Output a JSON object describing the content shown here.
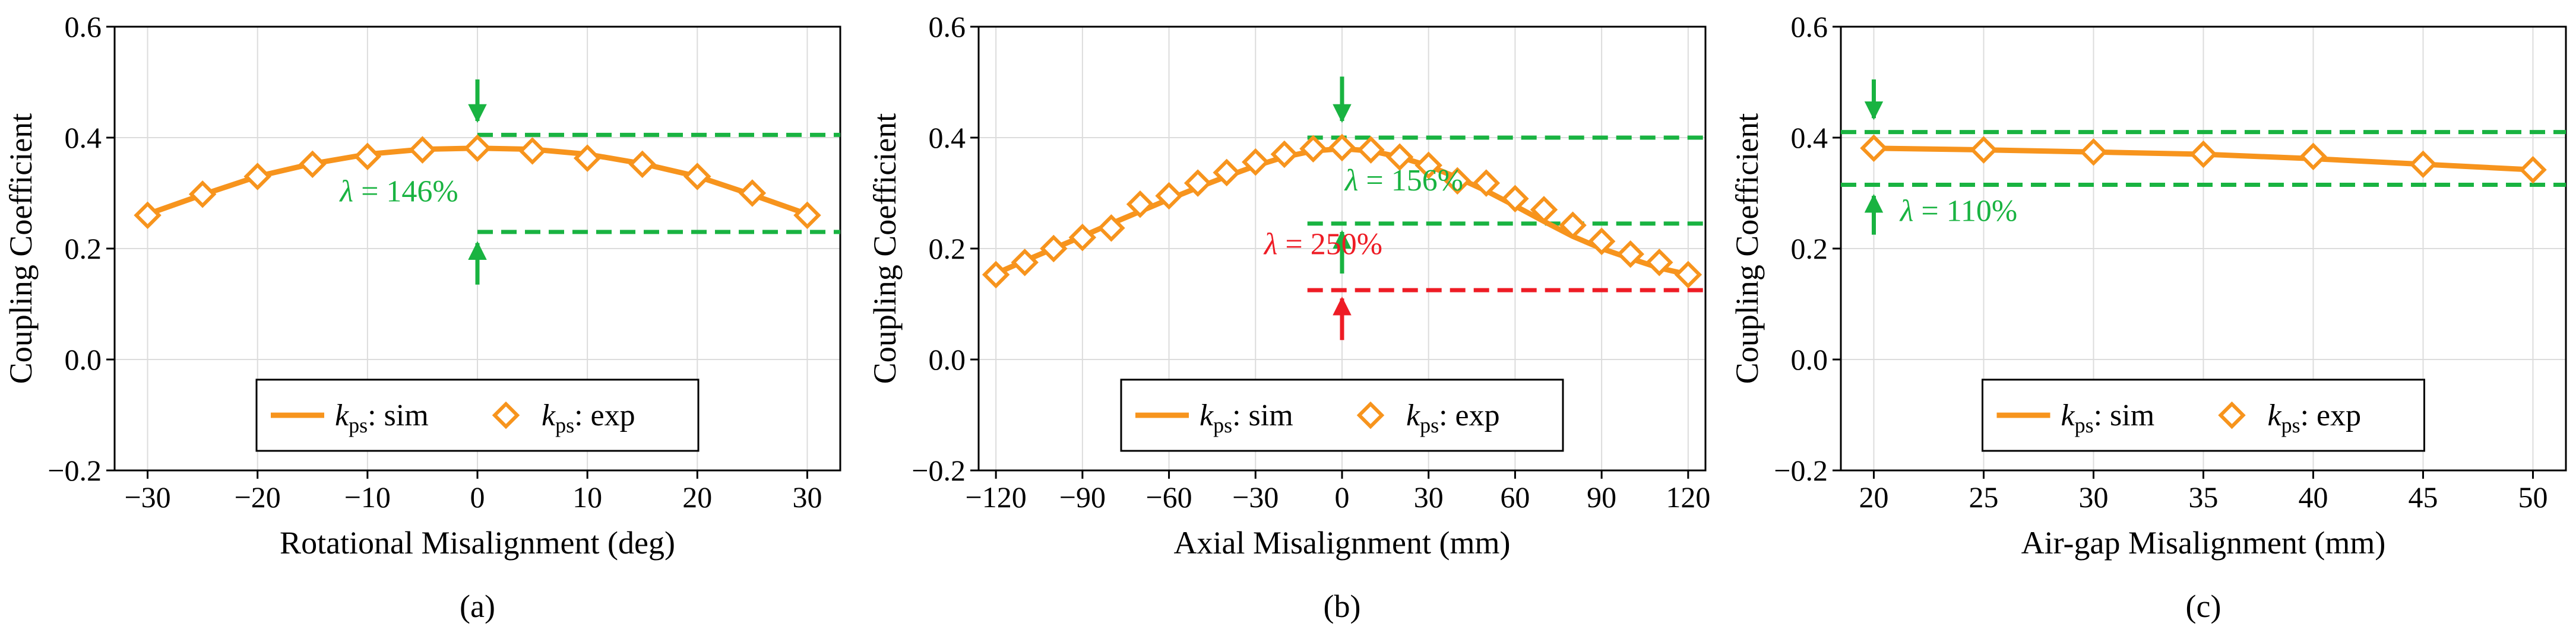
{
  "colors": {
    "series": "#f7941d",
    "guide_green": "#19b341",
    "guide_red": "#ee1c25",
    "grid": "#dcdcdc",
    "axis": "#000000"
  },
  "chart_data": [
    {
      "type": "line",
      "panel": "(a)",
      "xlabel": "Rotational Misalignment (deg)",
      "ylabel": "Coupling Coefficient",
      "xlim": [
        -33,
        33
      ],
      "ylim": [
        -0.2,
        0.6
      ],
      "xticks": [
        -30,
        -20,
        -10,
        0,
        10,
        20,
        30
      ],
      "xtick_labels": [
        "−30",
        "−20",
        "−10",
        "0",
        "10",
        "20",
        "30"
      ],
      "yticks": [
        -0.2,
        0.0,
        0.2,
        0.4,
        0.6
      ],
      "ytick_labels": [
        "−0.2",
        "0.0",
        "0.2",
        "0.4",
        "0.6"
      ],
      "grid": true,
      "legend_placement": "bottom-center",
      "series": [
        {
          "name": "k_ps: sim",
          "style": "line",
          "x": [
            -30,
            -25,
            -20,
            -15,
            -10,
            -5,
            0,
            5,
            10,
            15,
            20,
            25,
            30
          ],
          "values": [
            0.262,
            0.297,
            0.33,
            0.353,
            0.37,
            0.379,
            0.381,
            0.379,
            0.37,
            0.353,
            0.33,
            0.297,
            0.262
          ]
        },
        {
          "name": "k_ps: exp",
          "style": "diamond-markers",
          "x": [
            -30,
            -25,
            -20,
            -15,
            -10,
            -5,
            0,
            5,
            10,
            15,
            20,
            25,
            30
          ],
          "values": [
            0.26,
            0.298,
            0.33,
            0.352,
            0.366,
            0.378,
            0.381,
            0.376,
            0.363,
            0.352,
            0.33,
            0.3,
            0.26
          ]
        }
      ],
      "legend": [
        {
          "sym": "k",
          "sub": "ps",
          "text": ": sim"
        },
        {
          "sym": "k",
          "sub": "ps",
          "text": ": exp"
        }
      ],
      "guides": [
        {
          "y": 0.405,
          "x_from": 0,
          "x_to": 33,
          "color": "green"
        },
        {
          "y": 0.23,
          "x_from": 0,
          "x_to": 33,
          "color": "green"
        }
      ],
      "arrows": [
        {
          "x": 0,
          "y_tail": 0.505,
          "y_head": 0.43,
          "color": "green"
        },
        {
          "x": 0,
          "y_tail": 0.135,
          "y_head": 0.21,
          "color": "green"
        }
      ],
      "annotations": [
        {
          "sym": "λ",
          "text": " = 146%",
          "x": -12.5,
          "y": 0.285,
          "color": "green"
        }
      ]
    },
    {
      "type": "line",
      "panel": "(b)",
      "xlabel": "Axial Misalignment (mm)",
      "ylabel": "Coupling Coefficient",
      "xlim": [
        -126,
        126
      ],
      "ylim": [
        -0.2,
        0.6
      ],
      "xticks": [
        -120,
        -90,
        -60,
        -30,
        0,
        30,
        60,
        90,
        120
      ],
      "xtick_labels": [
        "−120",
        "−90",
        "−60",
        "−30",
        "0",
        "30",
        "60",
        "90",
        "120"
      ],
      "yticks": [
        -0.2,
        0.0,
        0.2,
        0.4,
        0.6
      ],
      "ytick_labels": [
        "−0.2",
        "0.0",
        "0.2",
        "0.4",
        "0.6"
      ],
      "grid": true,
      "legend_placement": "bottom-center",
      "series": [
        {
          "name": "k_ps: sim",
          "style": "line",
          "x": [
            -120,
            -110,
            -100,
            -90,
            -80,
            -70,
            -60,
            -50,
            -40,
            -30,
            -20,
            -10,
            0,
            10,
            20,
            30,
            40,
            50,
            60,
            70,
            80,
            90,
            100,
            110,
            120
          ],
          "values": [
            0.155,
            0.178,
            0.2,
            0.222,
            0.245,
            0.267,
            0.289,
            0.31,
            0.33,
            0.349,
            0.365,
            0.376,
            0.38,
            0.376,
            0.365,
            0.349,
            0.328,
            0.304,
            0.277,
            0.249,
            0.222,
            0.2,
            0.182,
            0.165,
            0.153
          ]
        },
        {
          "name": "k_ps: exp",
          "style": "diamond-markers",
          "x": [
            -120,
            -110,
            -100,
            -90,
            -80,
            -70,
            -60,
            -50,
            -40,
            -30,
            -20,
            -10,
            0,
            10,
            20,
            30,
            40,
            50,
            60,
            70,
            80,
            90,
            100,
            110,
            120
          ],
          "values": [
            0.153,
            0.175,
            0.2,
            0.22,
            0.237,
            0.28,
            0.295,
            0.318,
            0.337,
            0.356,
            0.37,
            0.38,
            0.382,
            0.378,
            0.365,
            0.35,
            0.322,
            0.318,
            0.29,
            0.27,
            0.242,
            0.213,
            0.19,
            0.175,
            0.153
          ]
        }
      ],
      "legend": [
        {
          "sym": "k",
          "sub": "ps",
          "text": ": sim"
        },
        {
          "sym": "k",
          "sub": "ps",
          "text": ": exp"
        }
      ],
      "guides": [
        {
          "y": 0.4,
          "x_from": -12,
          "x_to": 126,
          "color": "green"
        },
        {
          "y": 0.245,
          "x_from": -12,
          "x_to": 126,
          "color": "green"
        },
        {
          "y": 0.125,
          "x_from": -12,
          "x_to": 126,
          "color": "red"
        }
      ],
      "arrows": [
        {
          "x": 0,
          "y_tail": 0.51,
          "y_head": 0.43,
          "color": "green"
        },
        {
          "x": 0,
          "y_tail": 0.155,
          "y_head": 0.23,
          "color": "green"
        },
        {
          "x": 0,
          "y_tail": 0.035,
          "y_head": 0.11,
          "color": "red"
        }
      ],
      "annotations": [
        {
          "sym": "λ",
          "text": " = 156%",
          "x": 1,
          "y": 0.305,
          "color": "green"
        },
        {
          "sym": "λ",
          "text": " = 250%",
          "x": -27,
          "y": 0.19,
          "color": "red"
        }
      ]
    },
    {
      "type": "line",
      "panel": "(c)",
      "xlabel": "Air-gap Misalignment (mm)",
      "ylabel": "Coupling Coefficient",
      "xlim": [
        18.5,
        51.5
      ],
      "ylim": [
        -0.2,
        0.6
      ],
      "xticks": [
        20,
        25,
        30,
        35,
        40,
        45,
        50
      ],
      "xtick_labels": [
        "20",
        "25",
        "30",
        "35",
        "40",
        "45",
        "50"
      ],
      "yticks": [
        -0.2,
        0.0,
        0.2,
        0.4,
        0.6
      ],
      "ytick_labels": [
        "−0.2",
        "0.0",
        "0.2",
        "0.4",
        "0.6"
      ],
      "grid": true,
      "legend_placement": "bottom-center",
      "series": [
        {
          "name": "k_ps: sim",
          "style": "line",
          "x": [
            20,
            25,
            30,
            35,
            40,
            45,
            50
          ],
          "values": [
            0.381,
            0.378,
            0.374,
            0.37,
            0.362,
            0.352,
            0.342
          ]
        },
        {
          "name": "k_ps: exp",
          "style": "diamond-markers",
          "x": [
            20,
            25,
            30,
            35,
            40,
            45,
            50
          ],
          "values": [
            0.381,
            0.378,
            0.374,
            0.37,
            0.366,
            0.352,
            0.342
          ]
        }
      ],
      "legend": [
        {
          "sym": "k",
          "sub": "ps",
          "text": ": sim"
        },
        {
          "sym": "k",
          "sub": "ps",
          "text": ": exp"
        }
      ],
      "guides": [
        {
          "y": 0.41,
          "x_from": 18.5,
          "x_to": 51.5,
          "color": "green"
        },
        {
          "y": 0.315,
          "x_from": 18.5,
          "x_to": 51.5,
          "color": "green"
        }
      ],
      "arrows": [
        {
          "x": 20,
          "y_tail": 0.505,
          "y_head": 0.435,
          "color": "green"
        },
        {
          "x": 20,
          "y_tail": 0.225,
          "y_head": 0.295,
          "color": "green"
        }
      ],
      "annotations": [
        {
          "sym": "λ",
          "text": " = 110%",
          "x": 21.2,
          "y": 0.25,
          "color": "green"
        }
      ]
    }
  ]
}
